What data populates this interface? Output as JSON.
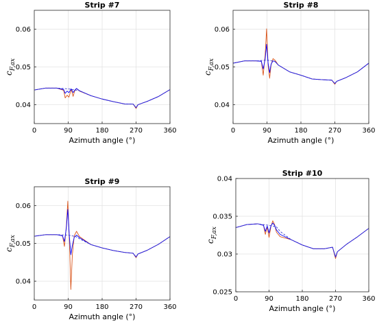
{
  "chart_data": [
    {
      "type": "line",
      "title": "Strip #7",
      "xlabel": "Azimuth angle (°)",
      "ylabel_main": "c",
      "ylabel_sub": "F,ax",
      "xlim": [
        0,
        360
      ],
      "ylim": [
        0.035,
        0.065
      ],
      "xticks": [
        "0",
        "90",
        "180",
        "270",
        "360"
      ],
      "yticks": [
        "0.04",
        "0.05",
        "0.06"
      ],
      "ytick_values": [
        0.04,
        0.05,
        0.06
      ],
      "grid": true,
      "series": [
        {
          "color": "#d95319",
          "style": "solid",
          "x": [
            0,
            30,
            60,
            78,
            82,
            87,
            92,
            98,
            103,
            107,
            112,
            120,
            150,
            180,
            210,
            240,
            262,
            270,
            275,
            300,
            330,
            360
          ],
          "y": [
            0.0439,
            0.0444,
            0.0444,
            0.0438,
            0.0418,
            0.0425,
            0.042,
            0.0441,
            0.0422,
            0.0436,
            0.0443,
            0.0436,
            0.0424,
            0.0415,
            0.0408,
            0.0402,
            0.0402,
            0.039,
            0.04,
            0.0409,
            0.0422,
            0.044
          ]
        },
        {
          "color": "#0000ff",
          "style": "solid",
          "x": [
            0,
            30,
            60,
            78,
            82,
            87,
            92,
            98,
            103,
            107,
            112,
            120,
            150,
            180,
            210,
            240,
            262,
            270,
            275,
            300,
            330,
            360
          ],
          "y": [
            0.0439,
            0.0444,
            0.0444,
            0.044,
            0.043,
            0.0436,
            0.0432,
            0.0442,
            0.0432,
            0.0438,
            0.0443,
            0.0437,
            0.0424,
            0.0415,
            0.0408,
            0.0402,
            0.0402,
            0.0392,
            0.04,
            0.0409,
            0.0422,
            0.044
          ]
        },
        {
          "color": "#3a3ad0",
          "style": "dashed",
          "x": [
            0,
            30,
            60,
            90,
            120,
            150,
            180,
            210,
            240,
            262,
            270,
            275,
            300,
            330,
            360
          ],
          "y": [
            0.0439,
            0.0444,
            0.0444,
            0.0442,
            0.0437,
            0.0424,
            0.0415,
            0.0408,
            0.0402,
            0.0402,
            0.0392,
            0.04,
            0.0409,
            0.0422,
            0.044
          ]
        }
      ]
    },
    {
      "type": "line",
      "title": "Strip #8",
      "xlabel": "Azimuth angle (°)",
      "ylabel_main": "c",
      "ylabel_sub": "F,ax",
      "xlim": [
        0,
        360
      ],
      "ylim": [
        0.035,
        0.065
      ],
      "xticks": [
        "0",
        "90",
        "180",
        "270",
        "360"
      ],
      "yticks": [
        "0.04",
        "0.05",
        "0.06"
      ],
      "ytick_values": [
        0.04,
        0.05,
        0.06
      ],
      "grid": true,
      "series": [
        {
          "color": "#d95319",
          "style": "solid",
          "x": [
            0,
            30,
            60,
            75,
            80,
            85,
            89,
            93,
            97,
            101,
            106,
            112,
            120,
            150,
            180,
            210,
            240,
            262,
            270,
            275,
            300,
            330,
            360
          ],
          "y": [
            0.051,
            0.0516,
            0.0516,
            0.0515,
            0.0478,
            0.053,
            0.0601,
            0.0505,
            0.047,
            0.0506,
            0.0522,
            0.0517,
            0.0505,
            0.0487,
            0.0478,
            0.0468,
            0.0466,
            0.0465,
            0.0454,
            0.0462,
            0.0472,
            0.0487,
            0.051
          ]
        },
        {
          "color": "#0000ff",
          "style": "solid",
          "x": [
            0,
            30,
            60,
            75,
            80,
            85,
            89,
            93,
            97,
            101,
            106,
            112,
            120,
            150,
            180,
            210,
            240,
            262,
            270,
            275,
            300,
            330,
            360
          ],
          "y": [
            0.051,
            0.0516,
            0.0516,
            0.0515,
            0.0495,
            0.052,
            0.056,
            0.051,
            0.0485,
            0.0508,
            0.0516,
            0.0514,
            0.0505,
            0.0487,
            0.0478,
            0.0468,
            0.0466,
            0.0465,
            0.0456,
            0.0462,
            0.0472,
            0.0487,
            0.051
          ]
        },
        {
          "color": "#3a3ad0",
          "style": "dashed",
          "x": [
            0,
            30,
            60,
            90,
            110,
            120,
            150,
            180,
            210,
            240,
            262,
            270,
            275,
            300,
            330,
            360
          ],
          "y": [
            0.051,
            0.0516,
            0.0516,
            0.0518,
            0.0515,
            0.0505,
            0.0487,
            0.0478,
            0.0468,
            0.0466,
            0.0465,
            0.0456,
            0.0462,
            0.0472,
            0.0487,
            0.051
          ]
        }
      ]
    },
    {
      "type": "line",
      "title": "Strip #9",
      "xlabel": "Azimuth angle (°)",
      "ylabel_main": "c",
      "ylabel_sub": "F,ax",
      "xlim": [
        0,
        360
      ],
      "ylim": [
        0.035,
        0.065
      ],
      "xticks": [
        "0",
        "90",
        "180",
        "270",
        "360"
      ],
      "yticks": [
        "0.04",
        "0.05",
        "0.06"
      ],
      "ytick_values": [
        0.04,
        0.05,
        0.06
      ],
      "grid": true,
      "series": [
        {
          "color": "#d95319",
          "style": "solid",
          "x": [
            0,
            30,
            60,
            75,
            80,
            85,
            89,
            93,
            97,
            101,
            106,
            112,
            120,
            150,
            180,
            210,
            240,
            262,
            270,
            275,
            300,
            330,
            360
          ],
          "y": [
            0.0519,
            0.0523,
            0.0523,
            0.052,
            0.0492,
            0.0545,
            0.0612,
            0.051,
            0.0378,
            0.047,
            0.052,
            0.0532,
            0.0518,
            0.0497,
            0.0488,
            0.0481,
            0.0476,
            0.0474,
            0.0462,
            0.0472,
            0.0482,
            0.0498,
            0.0518
          ]
        },
        {
          "color": "#0000ff",
          "style": "solid",
          "x": [
            0,
            30,
            60,
            75,
            80,
            85,
            89,
            93,
            97,
            101,
            106,
            112,
            120,
            150,
            180,
            210,
            240,
            262,
            270,
            275,
            300,
            330,
            360
          ],
          "y": [
            0.0519,
            0.0523,
            0.0523,
            0.052,
            0.0505,
            0.054,
            0.059,
            0.052,
            0.047,
            0.0495,
            0.0516,
            0.0522,
            0.0515,
            0.0497,
            0.0488,
            0.0481,
            0.0476,
            0.0474,
            0.0464,
            0.0472,
            0.0482,
            0.0498,
            0.0518
          ]
        },
        {
          "color": "#3a3ad0",
          "style": "dashed",
          "x": [
            0,
            30,
            60,
            90,
            110,
            120,
            150,
            180,
            210,
            240,
            262,
            270,
            275,
            300,
            330,
            360
          ],
          "y": [
            0.0519,
            0.0523,
            0.0523,
            0.0522,
            0.0518,
            0.0512,
            0.0497,
            0.0488,
            0.0481,
            0.0476,
            0.0474,
            0.0464,
            0.0472,
            0.0482,
            0.0498,
            0.0518
          ]
        }
      ]
    },
    {
      "type": "line",
      "title": "Strip #10",
      "xlabel": "Azimuth angle (°)",
      "ylabel_main": "c",
      "ylabel_sub": "F,ax",
      "xlim": [
        0,
        360
      ],
      "ylim": [
        0.025,
        0.04
      ],
      "xticks": [
        "0",
        "90",
        "180",
        "270",
        "360"
      ],
      "yticks": [
        "0.025",
        "0.03",
        "0.035",
        "0.04"
      ],
      "ytick_values": [
        0.025,
        0.03,
        0.035,
        0.04
      ],
      "grid": true,
      "series": [
        {
          "color": "#d95319",
          "style": "solid",
          "x": [
            0,
            30,
            60,
            75,
            80,
            85,
            90,
            95,
            100,
            105,
            110,
            120,
            150,
            180,
            210,
            240,
            262,
            270,
            275,
            300,
            330,
            360
          ],
          "y": [
            0.0335,
            0.0339,
            0.034,
            0.0338,
            0.0326,
            0.0336,
            0.0322,
            0.0336,
            0.0344,
            0.0339,
            0.0329,
            0.0323,
            0.0319,
            0.0312,
            0.0307,
            0.0307,
            0.0309,
            0.0294,
            0.0303,
            0.0313,
            0.0323,
            0.0334
          ]
        },
        {
          "color": "#0000ff",
          "style": "solid",
          "x": [
            0,
            30,
            60,
            75,
            80,
            85,
            90,
            95,
            100,
            105,
            110,
            120,
            150,
            180,
            210,
            240,
            262,
            270,
            275,
            300,
            330,
            360
          ],
          "y": [
            0.0335,
            0.0339,
            0.034,
            0.0338,
            0.033,
            0.0337,
            0.0328,
            0.0337,
            0.0341,
            0.0338,
            0.0332,
            0.0326,
            0.0319,
            0.0312,
            0.0307,
            0.0307,
            0.0309,
            0.0296,
            0.0303,
            0.0313,
            0.0323,
            0.0334
          ]
        },
        {
          "color": "#3a3ad0",
          "style": "dashed",
          "x": [
            0,
            30,
            60,
            90,
            110,
            120,
            150,
            180,
            210,
            240,
            262,
            270,
            275,
            300,
            330,
            360
          ],
          "y": [
            0.0335,
            0.0339,
            0.034,
            0.0338,
            0.0336,
            0.033,
            0.0319,
            0.0312,
            0.0307,
            0.0307,
            0.0309,
            0.0296,
            0.0303,
            0.0313,
            0.0323,
            0.0334
          ]
        }
      ]
    }
  ]
}
